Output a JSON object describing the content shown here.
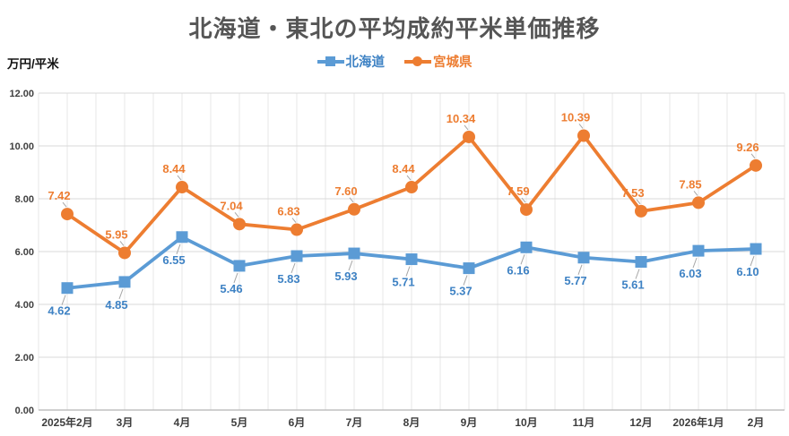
{
  "chart_data": {
    "type": "line",
    "title": "北海道・東北の平均成約平米単価推移",
    "unit_label": "万円/平米",
    "categories": [
      "2025年2月",
      "3月",
      "4月",
      "5月",
      "6月",
      "7月",
      "8月",
      "9月",
      "10月",
      "11月",
      "12月",
      "2026年1月",
      "2月"
    ],
    "series": [
      {
        "name": "北海道",
        "color": "#5B9BD5",
        "label_color": "#3E82C4",
        "marker": "square",
        "label_position": "below",
        "values": [
          4.62,
          4.85,
          6.55,
          5.46,
          5.83,
          5.93,
          5.71,
          5.37,
          6.16,
          5.77,
          5.61,
          6.03,
          6.1
        ]
      },
      {
        "name": "宮城県",
        "color": "#ED7D31",
        "label_color": "#ED7D31",
        "marker": "circle",
        "label_position": "above",
        "values": [
          7.42,
          5.95,
          8.44,
          7.04,
          6.83,
          7.6,
          8.44,
          10.34,
          7.59,
          10.39,
          7.53,
          7.85,
          9.26
        ]
      }
    ],
    "y_axis": {
      "min": 0,
      "max": 12,
      "step": 2,
      "tick_labels": [
        "0.00",
        "2.00",
        "4.00",
        "6.00",
        "8.00",
        "10.00",
        "12.00"
      ]
    },
    "legend_position": "top",
    "grid": "horizontal-and-vertical",
    "colors": {
      "v_gridline": "#E7E7E7",
      "h_gridline": "#D9D9D9",
      "axis_line": "#C0C0C0",
      "leader_line": "#A6A6A6",
      "title": "#555555",
      "tick_text": "#3d3d3d"
    }
  }
}
